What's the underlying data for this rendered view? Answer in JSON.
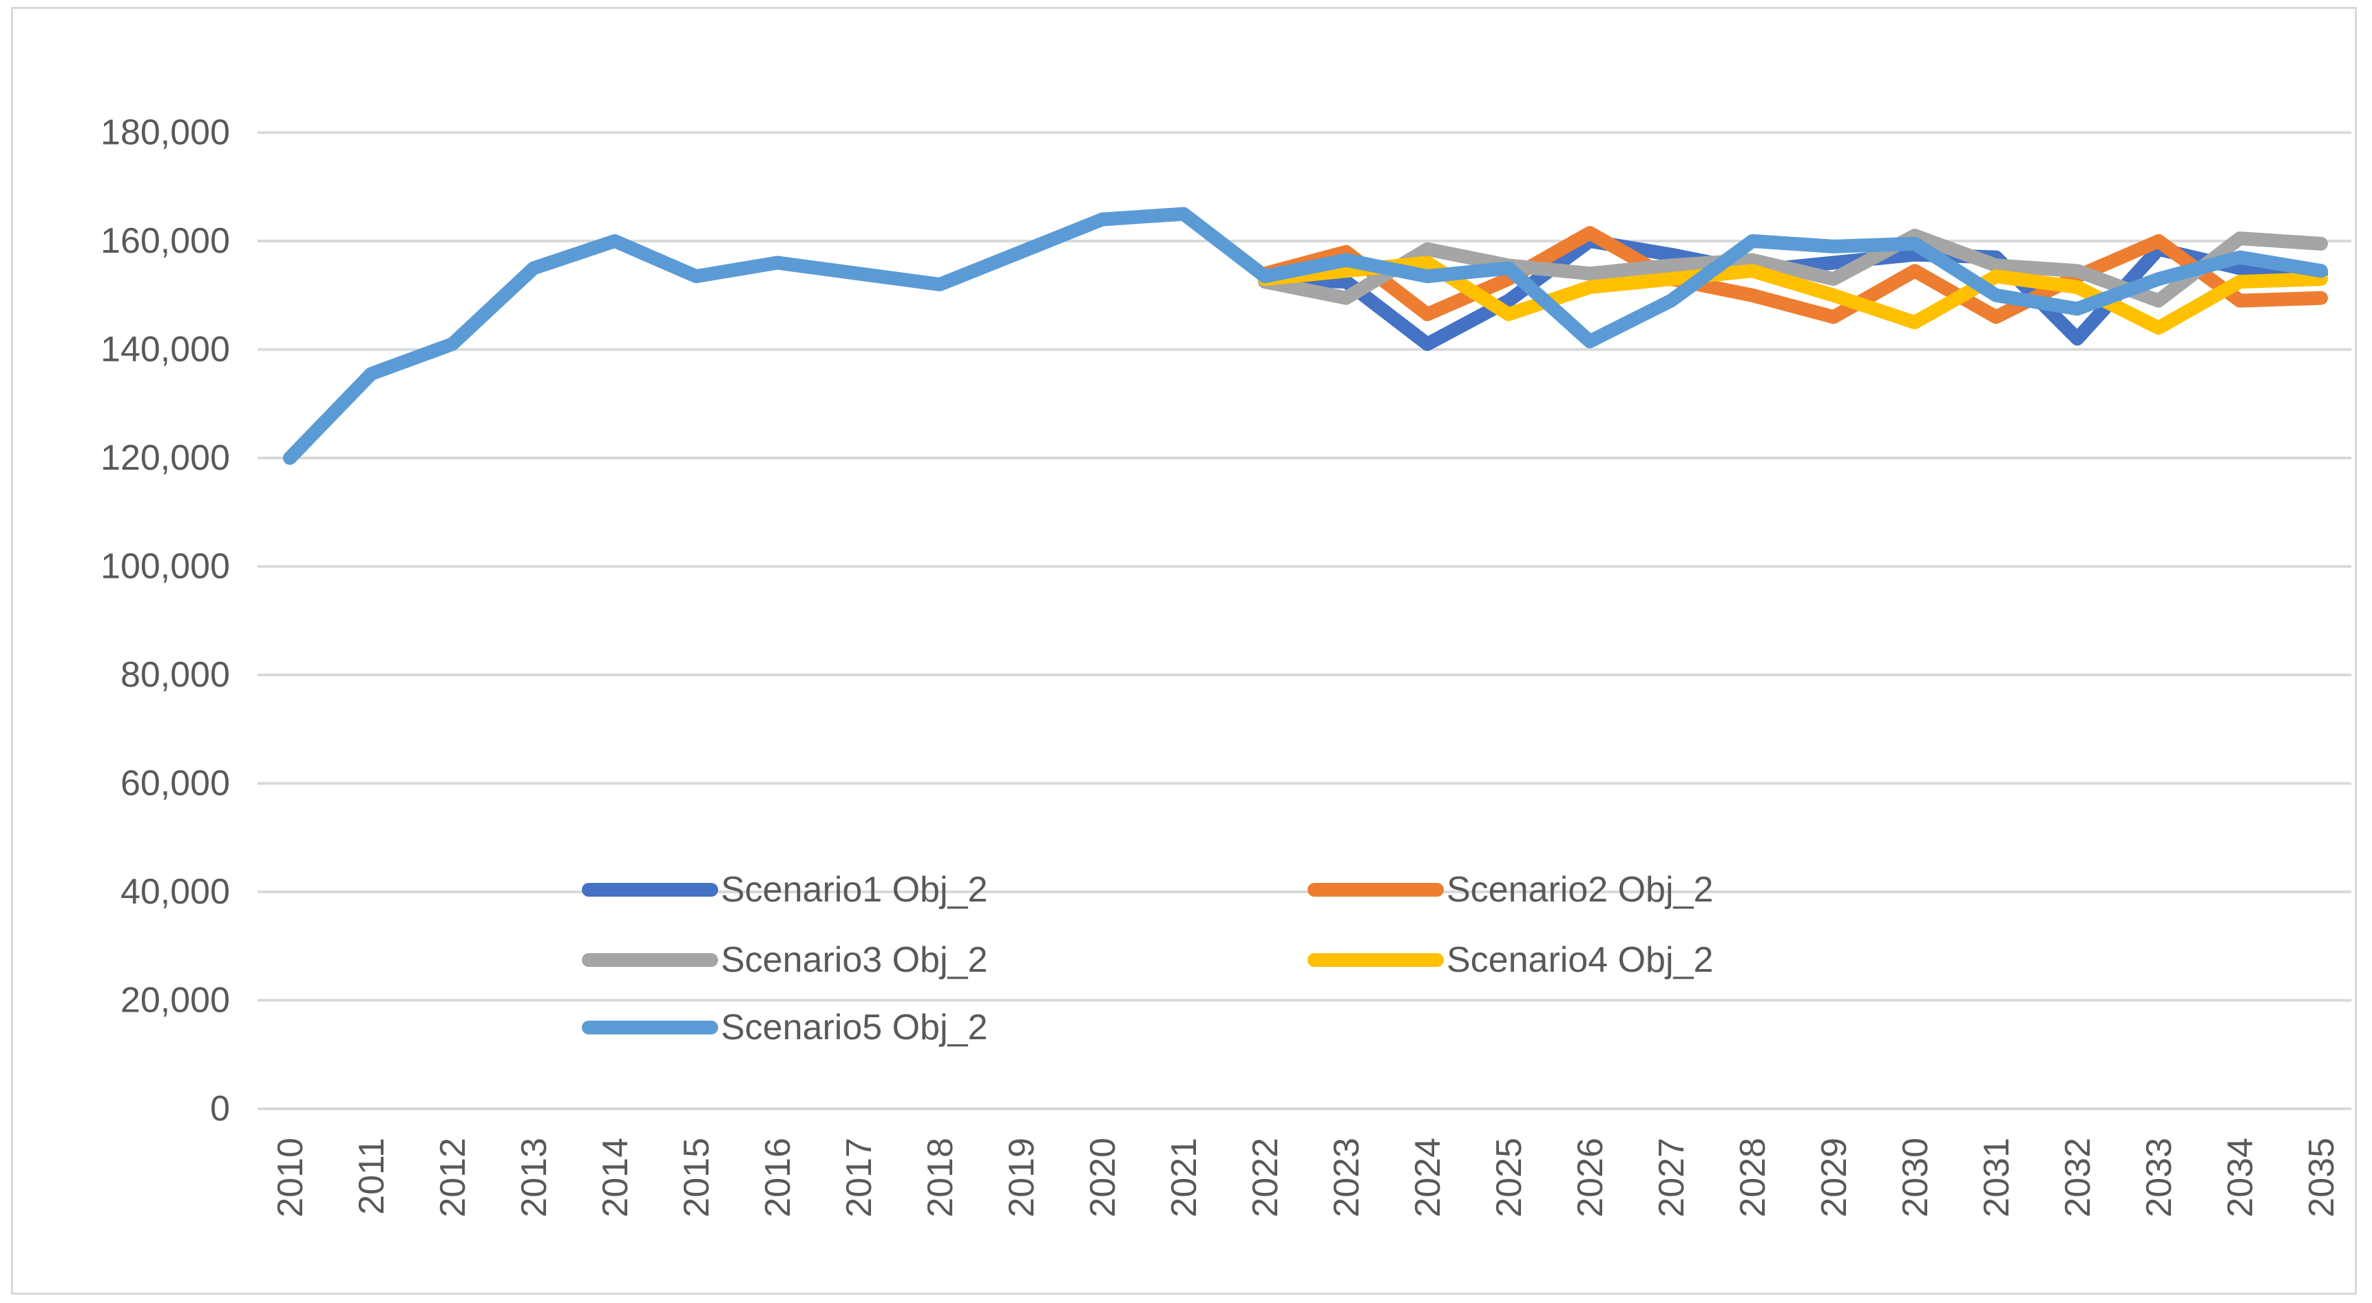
{
  "chart_data": {
    "type": "line",
    "title": "",
    "xlabel": "",
    "ylabel": "",
    "x": [
      2010,
      2011,
      2012,
      2013,
      2014,
      2015,
      2016,
      2017,
      2018,
      2019,
      2020,
      2021,
      2022,
      2023,
      2024,
      2025,
      2026,
      2027,
      2028,
      2029,
      2030,
      2031,
      2032,
      2033,
      2034,
      2035
    ],
    "x_tick_labels": [
      "2010",
      "2011",
      "2012",
      "2013",
      "2014",
      "2015",
      "2016",
      "2017",
      "2018",
      "2019",
      "2020",
      "2021",
      "2022",
      "2023",
      "2024",
      "2025",
      "2026",
      "2027",
      "2028",
      "2029",
      "2030",
      "2031",
      "2032",
      "2033",
      "2034",
      "2035"
    ],
    "ylim": [
      0,
      180000
    ],
    "y_tick_values": [
      0,
      20000,
      40000,
      60000,
      80000,
      100000,
      120000,
      140000,
      160000,
      180000
    ],
    "y_tick_labels": [
      "0",
      "20,000",
      "40,000",
      "60,000",
      "80,000",
      "100,000",
      "120,000",
      "140,000",
      "160,000",
      "180,000"
    ],
    "grid": true,
    "gridline_color": "#d9d9d9",
    "axis_text_color": "#595959",
    "legend_position": "bottom-center-overlay",
    "series": [
      {
        "name": "Scenario1 Obj_2",
        "color": "#4472C4",
        "values": [
          null,
          null,
          null,
          null,
          null,
          null,
          null,
          null,
          null,
          null,
          null,
          null,
          153000,
          152500,
          141000,
          149000,
          160000,
          157500,
          154500,
          156000,
          157500,
          157000,
          142000,
          158500,
          155000,
          154000
        ]
      },
      {
        "name": "Scenario2 Obj_2",
        "color": "#ED7D31",
        "values": [
          null,
          null,
          null,
          null,
          null,
          null,
          null,
          null,
          null,
          null,
          null,
          null,
          154000,
          158000,
          146500,
          153000,
          161500,
          153000,
          150000,
          146000,
          154500,
          146000,
          153500,
          160000,
          149000,
          149500
        ]
      },
      {
        "name": "Scenario3 Obj_2",
        "color": "#A5A5A5",
        "values": [
          null,
          null,
          null,
          null,
          null,
          null,
          null,
          null,
          null,
          null,
          null,
          null,
          152500,
          149500,
          158500,
          155500,
          154000,
          155500,
          156500,
          153000,
          161000,
          155500,
          154500,
          149000,
          160500,
          159500
        ]
      },
      {
        "name": "Scenario4 Obj_2",
        "color": "#FFC000",
        "values": [
          null,
          null,
          null,
          null,
          null,
          null,
          null,
          null,
          null,
          null,
          null,
          null,
          153000,
          154500,
          156000,
          146500,
          151500,
          153000,
          154500,
          150000,
          145000,
          153500,
          151500,
          144000,
          152500,
          153000
        ]
      },
      {
        "name": "Scenario5 Obj_2",
        "color": "#5B9BD5",
        "values": [
          120000,
          135500,
          141000,
          155000,
          160000,
          153500,
          156000,
          154000,
          152000,
          158000,
          164000,
          165000,
          153500,
          156500,
          153500,
          155000,
          141500,
          149000,
          160000,
          159000,
          159500,
          150000,
          147500,
          153000,
          157000,
          154500
        ]
      }
    ]
  }
}
